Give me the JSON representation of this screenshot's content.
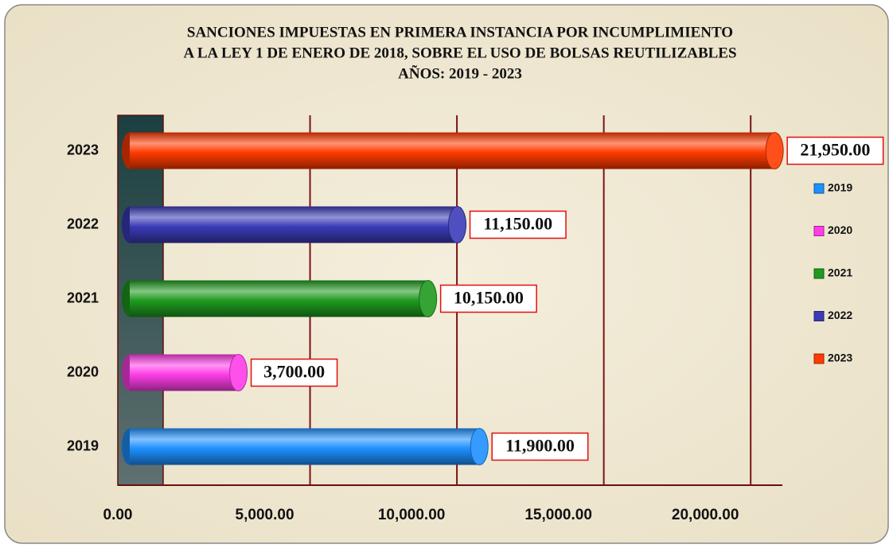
{
  "chart_data": {
    "type": "hbar",
    "title": [
      "SANCIONES IMPUESTAS EN PRIMERA INSTANCIA POR INCUMPLIMIENTO",
      "A LA LEY 1 DE ENERO DE 2018, SOBRE EL USO DE BOLSAS REUTILIZABLES",
      "AÑOS: 2019 - 2023"
    ],
    "categories": [
      "2019",
      "2020",
      "2021",
      "2022",
      "2023"
    ],
    "values": [
      11900,
      3700,
      10150,
      11150,
      21950
    ],
    "value_labels": [
      "11,900.00",
      "3,700.00",
      "10,150.00",
      "11,150.00",
      "21,950.00"
    ],
    "colors": [
      "#1e90ff",
      "#ff3ee8",
      "#1f9a1f",
      "#3b3bb8",
      "#ff3b00"
    ],
    "xlim": [
      0,
      22000
    ],
    "xticks": [
      {
        "value": 0,
        "label": "0.00"
      },
      {
        "value": 5000,
        "label": "5,000.00"
      },
      {
        "value": 10000,
        "label": "10,000.00"
      },
      {
        "value": 15000,
        "label": "15,000.00"
      },
      {
        "value": 20000,
        "label": "20,000.00"
      }
    ],
    "grid": true,
    "legend": "right"
  }
}
